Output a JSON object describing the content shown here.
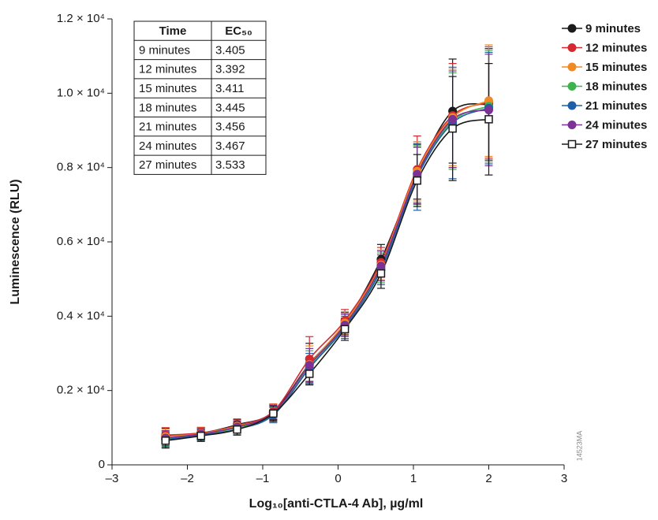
{
  "chart_data": {
    "type": "line",
    "x_label": "Log₁₀[anti-CTLA-4 Ab], µg/ml",
    "y_label": "Luminescence (RLU)",
    "watermark": "14523MA",
    "xlim": [
      -3,
      3
    ],
    "xticks": [
      {
        "value": -3,
        "label": "–3"
      },
      {
        "value": -2,
        "label": "–2"
      },
      {
        "value": -1,
        "label": "–1"
      },
      0,
      1,
      2,
      3
    ],
    "ylim": [
      0,
      12000
    ],
    "yticks": [
      0,
      {
        "value": 2000,
        "label": "0.2 × 10⁴"
      },
      {
        "value": 4000,
        "label": "0.4 × 10⁴"
      },
      {
        "value": 6000,
        "label": "0.6 × 10⁴"
      },
      {
        "value": 8000,
        "label": "0.8 × 10⁴"
      },
      {
        "value": 10000,
        "label": "1.0 × 10⁴"
      },
      {
        "value": 12000,
        "label": "1.2 × 10⁴"
      }
    ],
    "legend": "right",
    "x": [
      -2.29,
      -1.82,
      -1.34,
      -0.86,
      -0.38,
      0.09,
      0.57,
      1.05,
      1.52,
      2.0
    ],
    "series": [
      {
        "name": "9 minutes",
        "color": "#1a1a1a",
        "marker": "circle",
        "values": [
          780,
          850,
          1080,
          1420,
          2720,
          3800,
          5530,
          7850,
          9520,
          9700
        ],
        "errors": [
          200,
          150,
          150,
          200,
          550,
          300,
          400,
          700,
          1400,
          1500
        ]
      },
      {
        "name": "12 minutes",
        "color": "#d42a2f",
        "marker": "circle",
        "values": [
          800,
          860,
          1060,
          1440,
          2850,
          3880,
          5450,
          7950,
          9400,
          9750
        ],
        "errors": [
          200,
          150,
          150,
          200,
          600,
          300,
          400,
          900,
          1400,
          1500
        ]
      },
      {
        "name": "15 minutes",
        "color": "#f08a24",
        "marker": "circle",
        "values": [
          760,
          840,
          1040,
          1380,
          2700,
          3820,
          5380,
          7900,
          9350,
          9800
        ],
        "errors": [
          200,
          150,
          150,
          250,
          500,
          300,
          400,
          800,
          1300,
          1500
        ]
      },
      {
        "name": "18 minutes",
        "color": "#3cb44b",
        "marker": "circle",
        "values": [
          700,
          820,
          1000,
          1350,
          2620,
          3750,
          5300,
          7800,
          9250,
          9650
        ],
        "errors": [
          200,
          150,
          150,
          200,
          450,
          300,
          400,
          800,
          1300,
          1500
        ]
      },
      {
        "name": "21 minutes",
        "color": "#1f5fa8",
        "marker": "circle",
        "values": [
          680,
          800,
          960,
          1340,
          2600,
          3700,
          5250,
          7750,
          9200,
          9600
        ],
        "errors": [
          200,
          150,
          150,
          200,
          400,
          300,
          400,
          900,
          1500,
          1500
        ]
      },
      {
        "name": "24 minutes",
        "color": "#7b3294",
        "marker": "circle",
        "values": [
          720,
          830,
          1020,
          1400,
          2680,
          3760,
          5350,
          7820,
          9300,
          9550
        ],
        "errors": [
          200,
          150,
          150,
          200,
          450,
          300,
          400,
          800,
          1300,
          1500
        ]
      },
      {
        "name": "27 minutes",
        "color": "#1a1a1a",
        "marker": "square",
        "values": [
          650,
          780,
          950,
          1380,
          2450,
          3650,
          5150,
          7650,
          9050,
          9300
        ],
        "errors": [
          200,
          150,
          150,
          200,
          300,
          300,
          400,
          700,
          1400,
          1500
        ]
      }
    ],
    "table": {
      "header": [
        "Time",
        "EC₅₀"
      ],
      "rows": [
        [
          "9 minutes",
          3.405
        ],
        [
          "12 minutes",
          3.392
        ],
        [
          "15 minutes",
          3.411
        ],
        [
          "18 minutes",
          3.445
        ],
        [
          "21 minutes",
          3.456
        ],
        [
          "24 minutes",
          3.467
        ],
        [
          "27 minutes",
          3.533
        ]
      ]
    }
  }
}
